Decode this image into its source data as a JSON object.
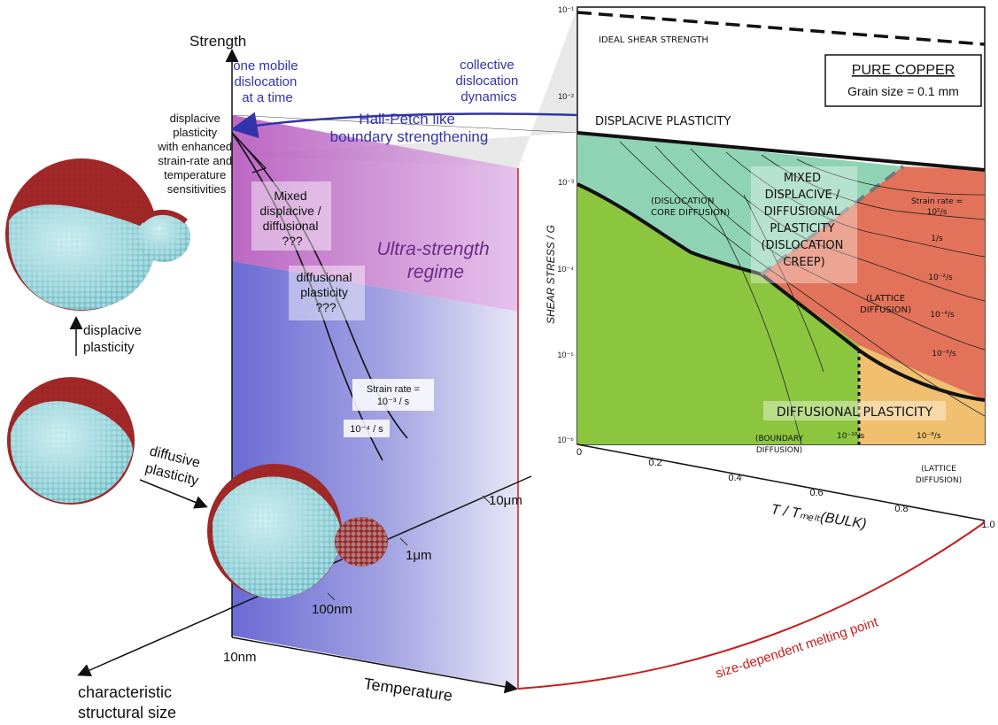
{
  "left_diagram": {
    "axis_strength": "Strength",
    "axis_temperature": "Temperature",
    "axis_size_line1": "characteristic",
    "axis_size_line2": "structural size",
    "size_ticks": [
      "10nm",
      "100nm",
      "1μm",
      "10μm"
    ],
    "one_mobile": [
      "one mobile",
      "dislocation",
      "at a time"
    ],
    "collective": [
      "collective",
      "dislocation",
      "dynamics"
    ],
    "hall_petch": [
      "Hall-Petch like",
      "boundary strengthening"
    ],
    "displacive_note": [
      "displacive",
      "plasticity",
      "with enhanced",
      "strain-rate and",
      "temperature",
      "sensitivities"
    ],
    "mixed_box": [
      "Mixed",
      "displacive /",
      "diffusional",
      "???"
    ],
    "diffusional_box": [
      "diffusional",
      "plasticity",
      "???"
    ],
    "ultra_strength": [
      "Ultra-strength",
      "regime"
    ],
    "strain_rate_label": "Strain rate =",
    "strain_rate_value": "10⁻³ / s",
    "strain_rate_low": "10⁻⁴ / s",
    "melting_label": "size-dependent melting point",
    "displacive_plasticity": [
      "displacive",
      "plasticity"
    ],
    "diffusive_plasticity": [
      "diffusive",
      "plasticity"
    ]
  },
  "deformation_map": {
    "title": "PURE COPPER",
    "grain_size": "Grain size = 0.1 mm",
    "ideal_shear": "IDEAL SHEAR STRENGTH",
    "displacive_plasticity": "DISPLACIVE PLASTICITY",
    "dislocation_core": [
      "(DISLOCATION",
      "CORE DIFFUSION)"
    ],
    "mixed": [
      "MIXED",
      "DISPLACIVE /",
      "DIFFUSIONAL",
      "PLASTICITY",
      "(DISLOCATION",
      "CREEP)"
    ],
    "lattice1": [
      "(LATTICE",
      "DIFFUSION)"
    ],
    "diffusional_plasticity": "DIFFUSIONAL PLASTICITY",
    "boundary_diffusion": [
      "(BOUNDARY",
      "DIFFUSION)"
    ],
    "lattice2": [
      "(LATTICE",
      "DIFFUSION)"
    ],
    "strain_rates": [
      "Strain rate =",
      "10²/s",
      "1/s",
      "10⁻²/s",
      "10⁻⁴/s",
      "10⁻⁶/s"
    ],
    "rate_1e10": "10⁻¹⁰/s",
    "rate_1e8": "10⁻⁸/s",
    "y_label": "SHEAR STRESS / G",
    "y_ticks": [
      "10⁻¹",
      "10⁻²",
      "10⁻³",
      "10⁻⁴",
      "10⁻⁵",
      "10⁻⁶"
    ],
    "x_label": "T / Tₘₑₗₜ(BULK)",
    "x_ticks": [
      "0",
      "0.2",
      "0.4",
      "0.6",
      "0.8",
      "1.0"
    ]
  },
  "colors": {
    "navy": "#2e2e8f",
    "purple": "#6b2b86",
    "red": "#c81e1e",
    "green": "#8cc63f",
    "teal": "#8fd3b5",
    "salmon": "#e2735a",
    "orange": "#f0c070"
  }
}
